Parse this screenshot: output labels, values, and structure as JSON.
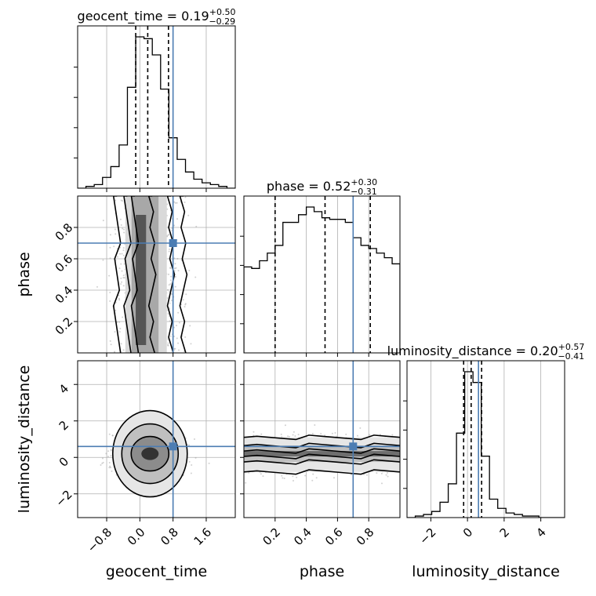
{
  "chart_data": {
    "type": "corner",
    "colors": {
      "truth": "#4c7db3",
      "hist": "#000000",
      "grid": "#b0b0b0",
      "samples": "#999999"
    },
    "grid": true,
    "parameters": [
      {
        "name": "geocent_time",
        "label": "geocent_time",
        "range": [
          -1.5,
          2.3
        ],
        "ticks": [
          -0.8,
          0.0,
          0.8,
          1.6
        ],
        "tick_labels": [
          "−0.8",
          "0.0",
          "0.8",
          "1.6"
        ],
        "truth": 0.8,
        "quantiles": [
          -0.1,
          0.19,
          0.69
        ],
        "median": "0.19",
        "plus": "+0.50",
        "minus": "−0.29",
        "title_prefix": "geocent_time = ",
        "hist_edges": [
          -1.5,
          -1.3,
          -1.1,
          -0.9,
          -0.7,
          -0.5,
          -0.3,
          -0.1,
          0.1,
          0.3,
          0.5,
          0.7,
          0.9,
          1.1,
          1.3,
          1.5,
          1.7,
          1.9,
          2.1,
          2.3
        ],
        "hist_counts": [
          0,
          1,
          2,
          6,
          12,
          24,
          56,
          84,
          83,
          74,
          55,
          28,
          16,
          9,
          5,
          3,
          2,
          1,
          0
        ]
      },
      {
        "name": "phase",
        "label": "phase",
        "range": [
          0.0,
          1.0
        ],
        "ticks": [
          0.2,
          0.4,
          0.6,
          0.8
        ],
        "tick_labels": [
          "0.2",
          "0.4",
          "0.6",
          "0.8"
        ],
        "truth": 0.7,
        "quantiles": [
          0.2,
          0.52,
          0.81
        ],
        "median": "0.52",
        "plus": "+0.30",
        "minus": "−0.31",
        "title_prefix": "phase = ",
        "hist_edges": [
          0.0,
          0.05,
          0.1,
          0.15,
          0.2,
          0.25,
          0.3,
          0.35,
          0.4,
          0.45,
          0.5,
          0.55,
          0.6,
          0.65,
          0.7,
          0.75,
          0.8,
          0.85,
          0.9,
          0.95,
          1.0
        ],
        "hist_counts": [
          56,
          55,
          60,
          65,
          70,
          85,
          85,
          90,
          95,
          92,
          88,
          87,
          87,
          85,
          75,
          70,
          68,
          65,
          62,
          58
        ]
      },
      {
        "name": "luminosity_distance",
        "label": "luminosity_distance",
        "range": [
          -3.3,
          5.3
        ],
        "ticks": [
          -2,
          0,
          2,
          4
        ],
        "tick_labels": [
          "−2",
          "0",
          "2",
          "4"
        ],
        "truth": 0.6,
        "quantiles": [
          -0.21,
          0.2,
          0.77
        ],
        "median": "0.20",
        "plus": "+0.57",
        "minus": "−0.41",
        "title_prefix": "luminosity_distance = ",
        "hist_edges": [
          -3.3,
          -2.85,
          -2.4,
          -1.95,
          -1.5,
          -1.05,
          -0.6,
          -0.15,
          0.3,
          0.75,
          1.2,
          1.65,
          2.1,
          2.55,
          3.0,
          3.45,
          3.9,
          4.35,
          4.8,
          5.3
        ],
        "hist_counts": [
          0,
          1,
          2,
          4,
          10,
          22,
          55,
          95,
          88,
          40,
          12,
          6,
          3,
          2,
          1,
          1,
          0,
          0,
          0
        ]
      }
    ]
  }
}
